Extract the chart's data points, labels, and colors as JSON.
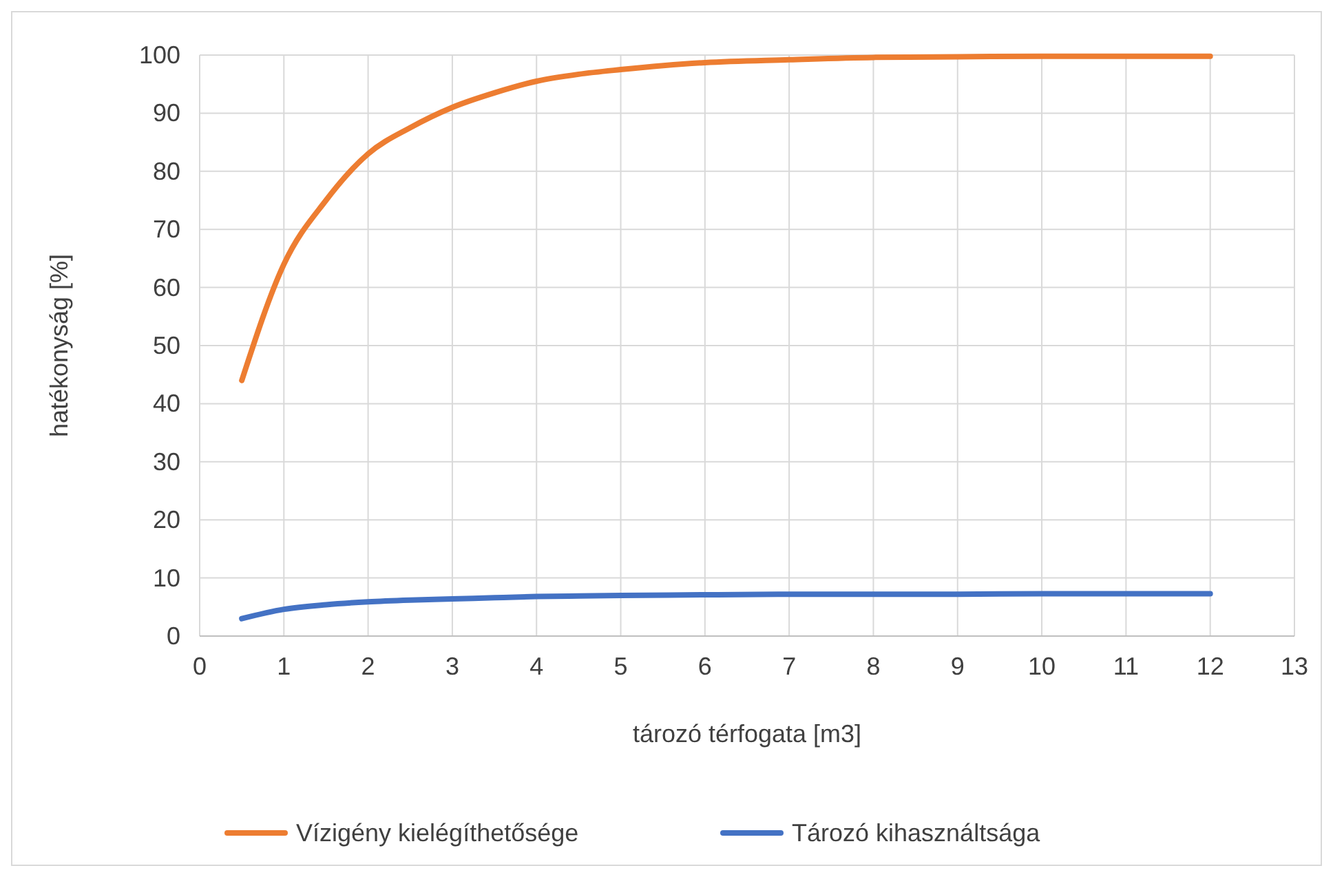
{
  "chart_data": {
    "type": "line",
    "xlabel": "tározó térfogata [m3]",
    "ylabel": "hatékonyság [%]",
    "x": [
      0.5,
      1,
      1.5,
      2,
      2.5,
      3,
      3.5,
      4,
      4.5,
      5,
      6,
      7,
      8,
      9,
      10,
      11,
      12
    ],
    "series": [
      {
        "name": "Vízigény kielégíthetősége",
        "color": "#ed7d31",
        "values": [
          44,
          64,
          75,
          83,
          87.5,
          91,
          93.5,
          95.5,
          96.7,
          97.5,
          98.7,
          99.2,
          99.6,
          99.7,
          99.8,
          99.8,
          99.8
        ]
      },
      {
        "name": "Tározó kihasználtsága",
        "color": "#4472c4",
        "values": [
          3,
          4.6,
          5.4,
          5.9,
          6.2,
          6.4,
          6.6,
          6.8,
          6.9,
          7,
          7.1,
          7.2,
          7.2,
          7.2,
          7.3,
          7.3,
          7.3
        ]
      }
    ],
    "xlim": [
      0,
      13
    ],
    "xticks": [
      0,
      1,
      2,
      3,
      4,
      5,
      6,
      7,
      8,
      9,
      10,
      11,
      12,
      13
    ],
    "ylim": [
      0,
      100
    ],
    "yticks": [
      0,
      10,
      20,
      30,
      40,
      50,
      60,
      70,
      80,
      90,
      100
    ],
    "grid": true,
    "legend": "bottom",
    "marker": "none",
    "line_style": "solid"
  }
}
